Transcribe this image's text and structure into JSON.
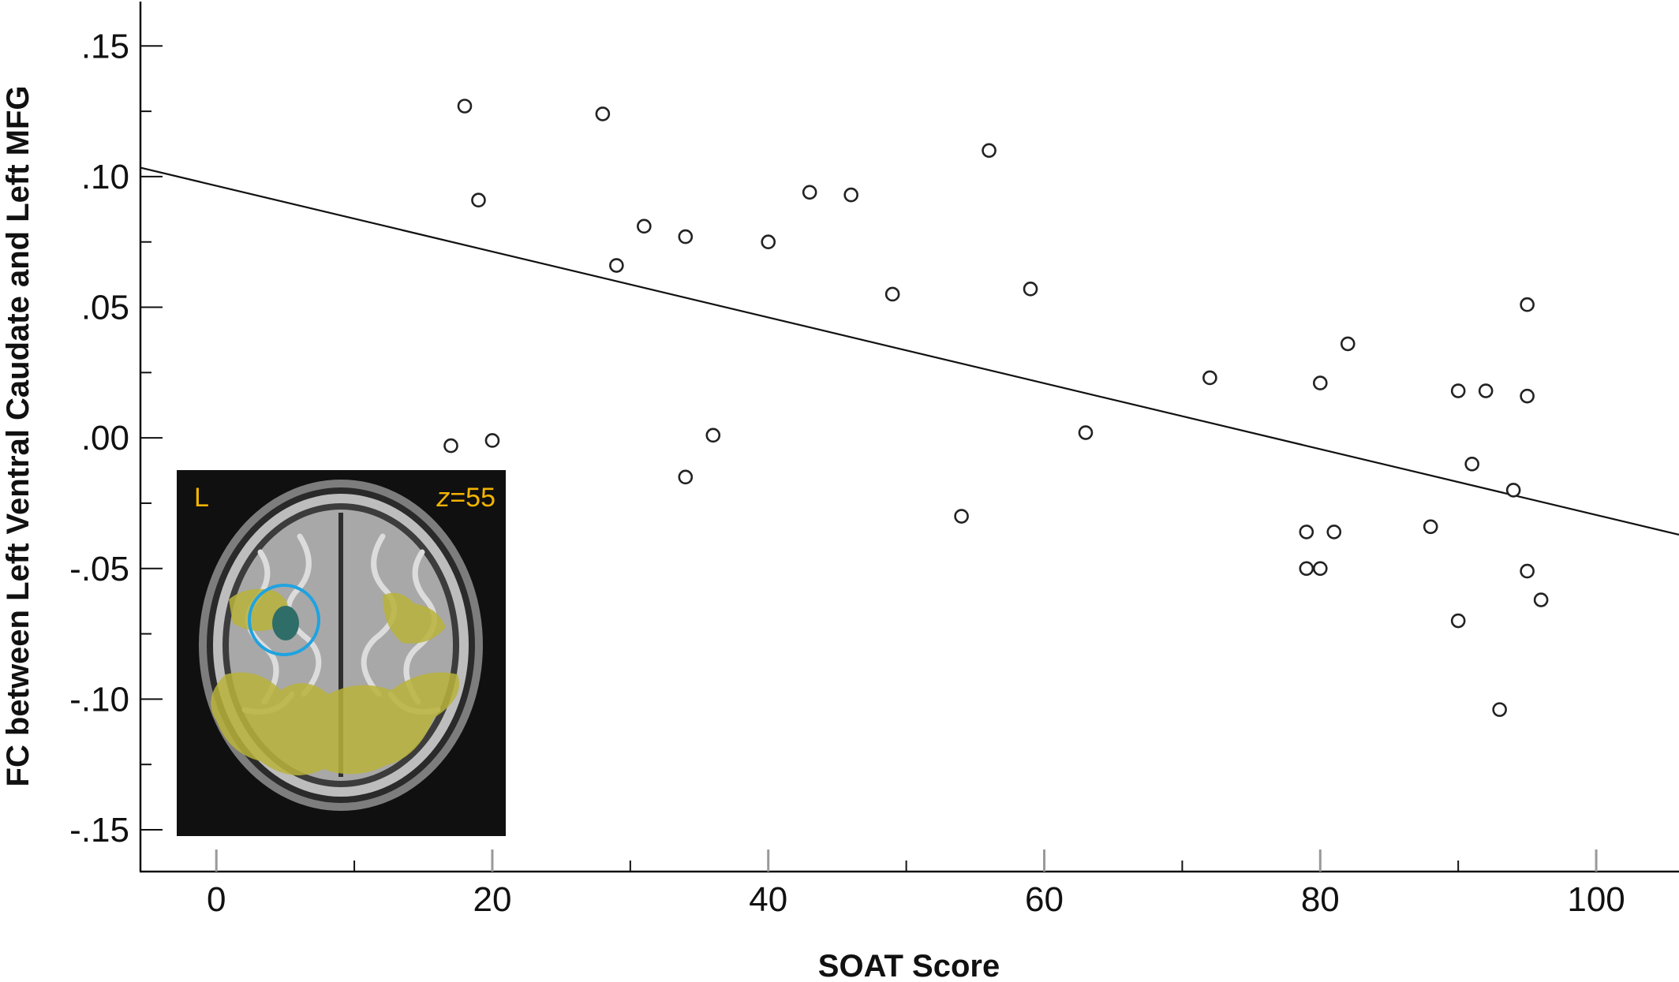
{
  "chart_data": {
    "type": "scatter",
    "xlabel": "SOAT Score",
    "ylabel": "FC between Left Ventral Caudate and Left MFG",
    "xlim": [
      -5.5,
      106
    ],
    "ylim": [
      -0.166,
      0.167
    ],
    "xticks": [
      0,
      20,
      40,
      60,
      80,
      100
    ],
    "xtick_labels": [
      "0",
      "20",
      "40",
      "60",
      "80",
      "100"
    ],
    "yticks": [
      0.15,
      0.1,
      0.05,
      0.0,
      -0.05,
      -0.1,
      -0.15
    ],
    "ytick_labels": [
      ".15",
      ".10",
      ".05",
      ".00",
      "-.05",
      "-.10",
      "-.15"
    ],
    "grid": false,
    "fit_line": {
      "intercept": 0.0965,
      "slope": -0.00126
    },
    "points": [
      {
        "x": 17,
        "y": -0.003
      },
      {
        "x": 18,
        "y": 0.127
      },
      {
        "x": 19,
        "y": 0.091
      },
      {
        "x": 20,
        "y": -0.001
      },
      {
        "x": 28,
        "y": 0.124
      },
      {
        "x": 29,
        "y": 0.066
      },
      {
        "x": 31,
        "y": 0.081
      },
      {
        "x": 34,
        "y": 0.077
      },
      {
        "x": 34,
        "y": -0.015
      },
      {
        "x": 36,
        "y": 0.001
      },
      {
        "x": 40,
        "y": 0.075
      },
      {
        "x": 43,
        "y": 0.094
      },
      {
        "x": 46,
        "y": 0.093
      },
      {
        "x": 49,
        "y": 0.055
      },
      {
        "x": 54,
        "y": -0.03
      },
      {
        "x": 56,
        "y": 0.11
      },
      {
        "x": 59,
        "y": 0.057
      },
      {
        "x": 63,
        "y": 0.002
      },
      {
        "x": 72,
        "y": 0.023
      },
      {
        "x": 79,
        "y": -0.036
      },
      {
        "x": 79,
        "y": -0.05
      },
      {
        "x": 80,
        "y": 0.021
      },
      {
        "x": 80,
        "y": -0.05
      },
      {
        "x": 81,
        "y": -0.036
      },
      {
        "x": 82,
        "y": 0.036
      },
      {
        "x": 88,
        "y": -0.034
      },
      {
        "x": 90,
        "y": 0.018
      },
      {
        "x": 90,
        "y": -0.07
      },
      {
        "x": 91,
        "y": -0.01
      },
      {
        "x": 92,
        "y": 0.018
      },
      {
        "x": 93,
        "y": -0.104
      },
      {
        "x": 94,
        "y": -0.02
      },
      {
        "x": 95,
        "y": 0.051
      },
      {
        "x": 95,
        "y": 0.016
      },
      {
        "x": 95,
        "y": -0.051
      },
      {
        "x": 96,
        "y": -0.062
      }
    ]
  },
  "inset": {
    "hemisphere_label": "L",
    "slice_label_var": "z",
    "slice_label_value": "=55",
    "colors": {
      "background": "#101010",
      "cluster": "#b8b33a",
      "roi": "#2f6e68",
      "roi_circle": "#1fa3e0",
      "text": "#f2b400"
    }
  }
}
